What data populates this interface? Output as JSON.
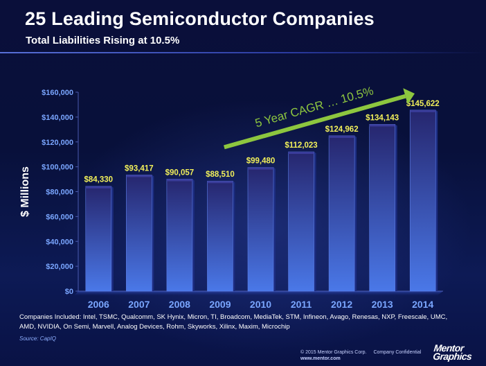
{
  "header": {
    "title": "25 Leading Semiconductor Companies",
    "subtitle": "Total Liabilities Rising at 10.5%"
  },
  "chart_data": {
    "type": "bar",
    "categories": [
      "2006",
      "2007",
      "2008",
      "2009",
      "2010",
      "2011",
      "2012",
      "2013",
      "2014"
    ],
    "values": [
      84330,
      93417,
      90057,
      88510,
      99480,
      112023,
      124962,
      134143,
      145622
    ],
    "value_labels": [
      "$84,330",
      "$93,417",
      "$90,057",
      "$88,510",
      "$99,480",
      "$112,023",
      "$124,962",
      "$134,143",
      "$145,622"
    ],
    "ylabel": "$ Millions",
    "xlabel": "",
    "ylim": [
      0,
      160000
    ],
    "yticks": [
      0,
      20000,
      40000,
      60000,
      80000,
      100000,
      120000,
      140000,
      160000
    ],
    "ytick_labels": [
      "$0",
      "$20,000",
      "$40,000",
      "$60,000",
      "$80,000",
      "$100,000",
      "$120,000",
      "$140,000",
      "$160,000"
    ],
    "annotation": "5 Year CAGR … 10.5%",
    "grid": false,
    "colors": {
      "bar_top": "#26266e",
      "bar_bottom": "#4a78e8",
      "value_label": "#f2f05a",
      "axis_labels": "#7aa6ff",
      "arrow": "#8dc63f"
    }
  },
  "footer": {
    "companies": "Companies Included: Intel, TSMC, Qualcomm, SK Hynix, Micron, TI, Broadcom, MediaTek, STM, Infineon, Avago, Renesas, NXP, Freescale, UMC, AMD, NVIDIA, On Semi, Marvell, Analog Devices, Rohm, Skyworks, Xilinx, Maxim, Microchip",
    "source": "Source: CapIQ",
    "copyright": "© 2015 Mentor Graphics Corp.",
    "confidential": "Company Confidential",
    "website": "www.mentor.com",
    "logo_line1": "Mentor",
    "logo_line2": "Graphics"
  }
}
